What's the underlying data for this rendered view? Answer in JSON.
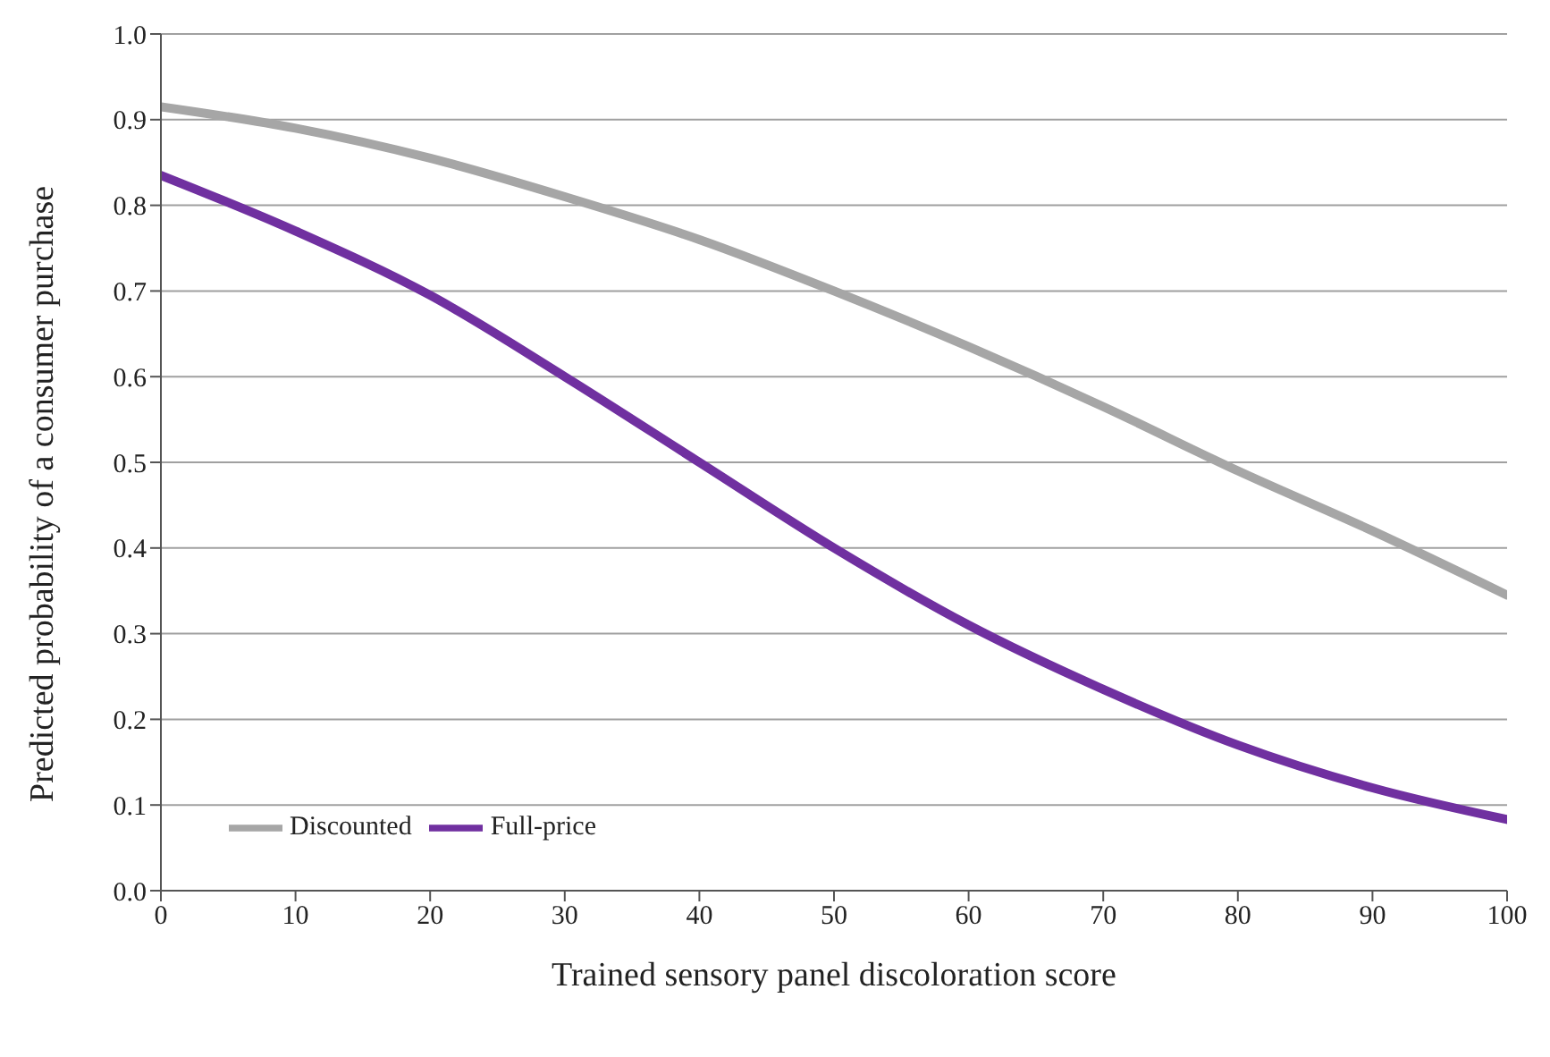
{
  "chart_data": {
    "type": "line",
    "xlabel": "Trained sensory panel discoloration score",
    "ylabel": "Predicted probability of a consumer purchase",
    "x": [
      0,
      10,
      20,
      30,
      40,
      50,
      60,
      70,
      80,
      90,
      100
    ],
    "series": [
      {
        "name": "Full-price",
        "color": "#7030a0",
        "values": [
          0.835,
          0.77,
          0.695,
          0.6,
          0.5,
          0.4,
          0.31,
          0.235,
          0.17,
          0.12,
          0.083
        ]
      },
      {
        "name": "Discounted",
        "color": "#a6a6a6",
        "values": [
          0.915,
          0.89,
          0.855,
          0.81,
          0.76,
          0.7,
          0.635,
          0.565,
          0.49,
          0.42,
          0.345
        ]
      }
    ],
    "xlim": [
      0,
      100
    ],
    "xticks": [
      0,
      10,
      20,
      30,
      40,
      50,
      60,
      70,
      80,
      90,
      100
    ],
    "ylim": [
      0,
      1
    ],
    "yticks": [
      {
        "value": 0,
        "label": "0.0"
      },
      0.1,
      0.2,
      0.3,
      0.4,
      0.5,
      0.6,
      0.7,
      0.8,
      0.9,
      {
        "value": 1,
        "label": "1.0"
      }
    ],
    "grid": "y",
    "legend": "bottom left",
    "marker": "none",
    "line_style": "solid"
  }
}
